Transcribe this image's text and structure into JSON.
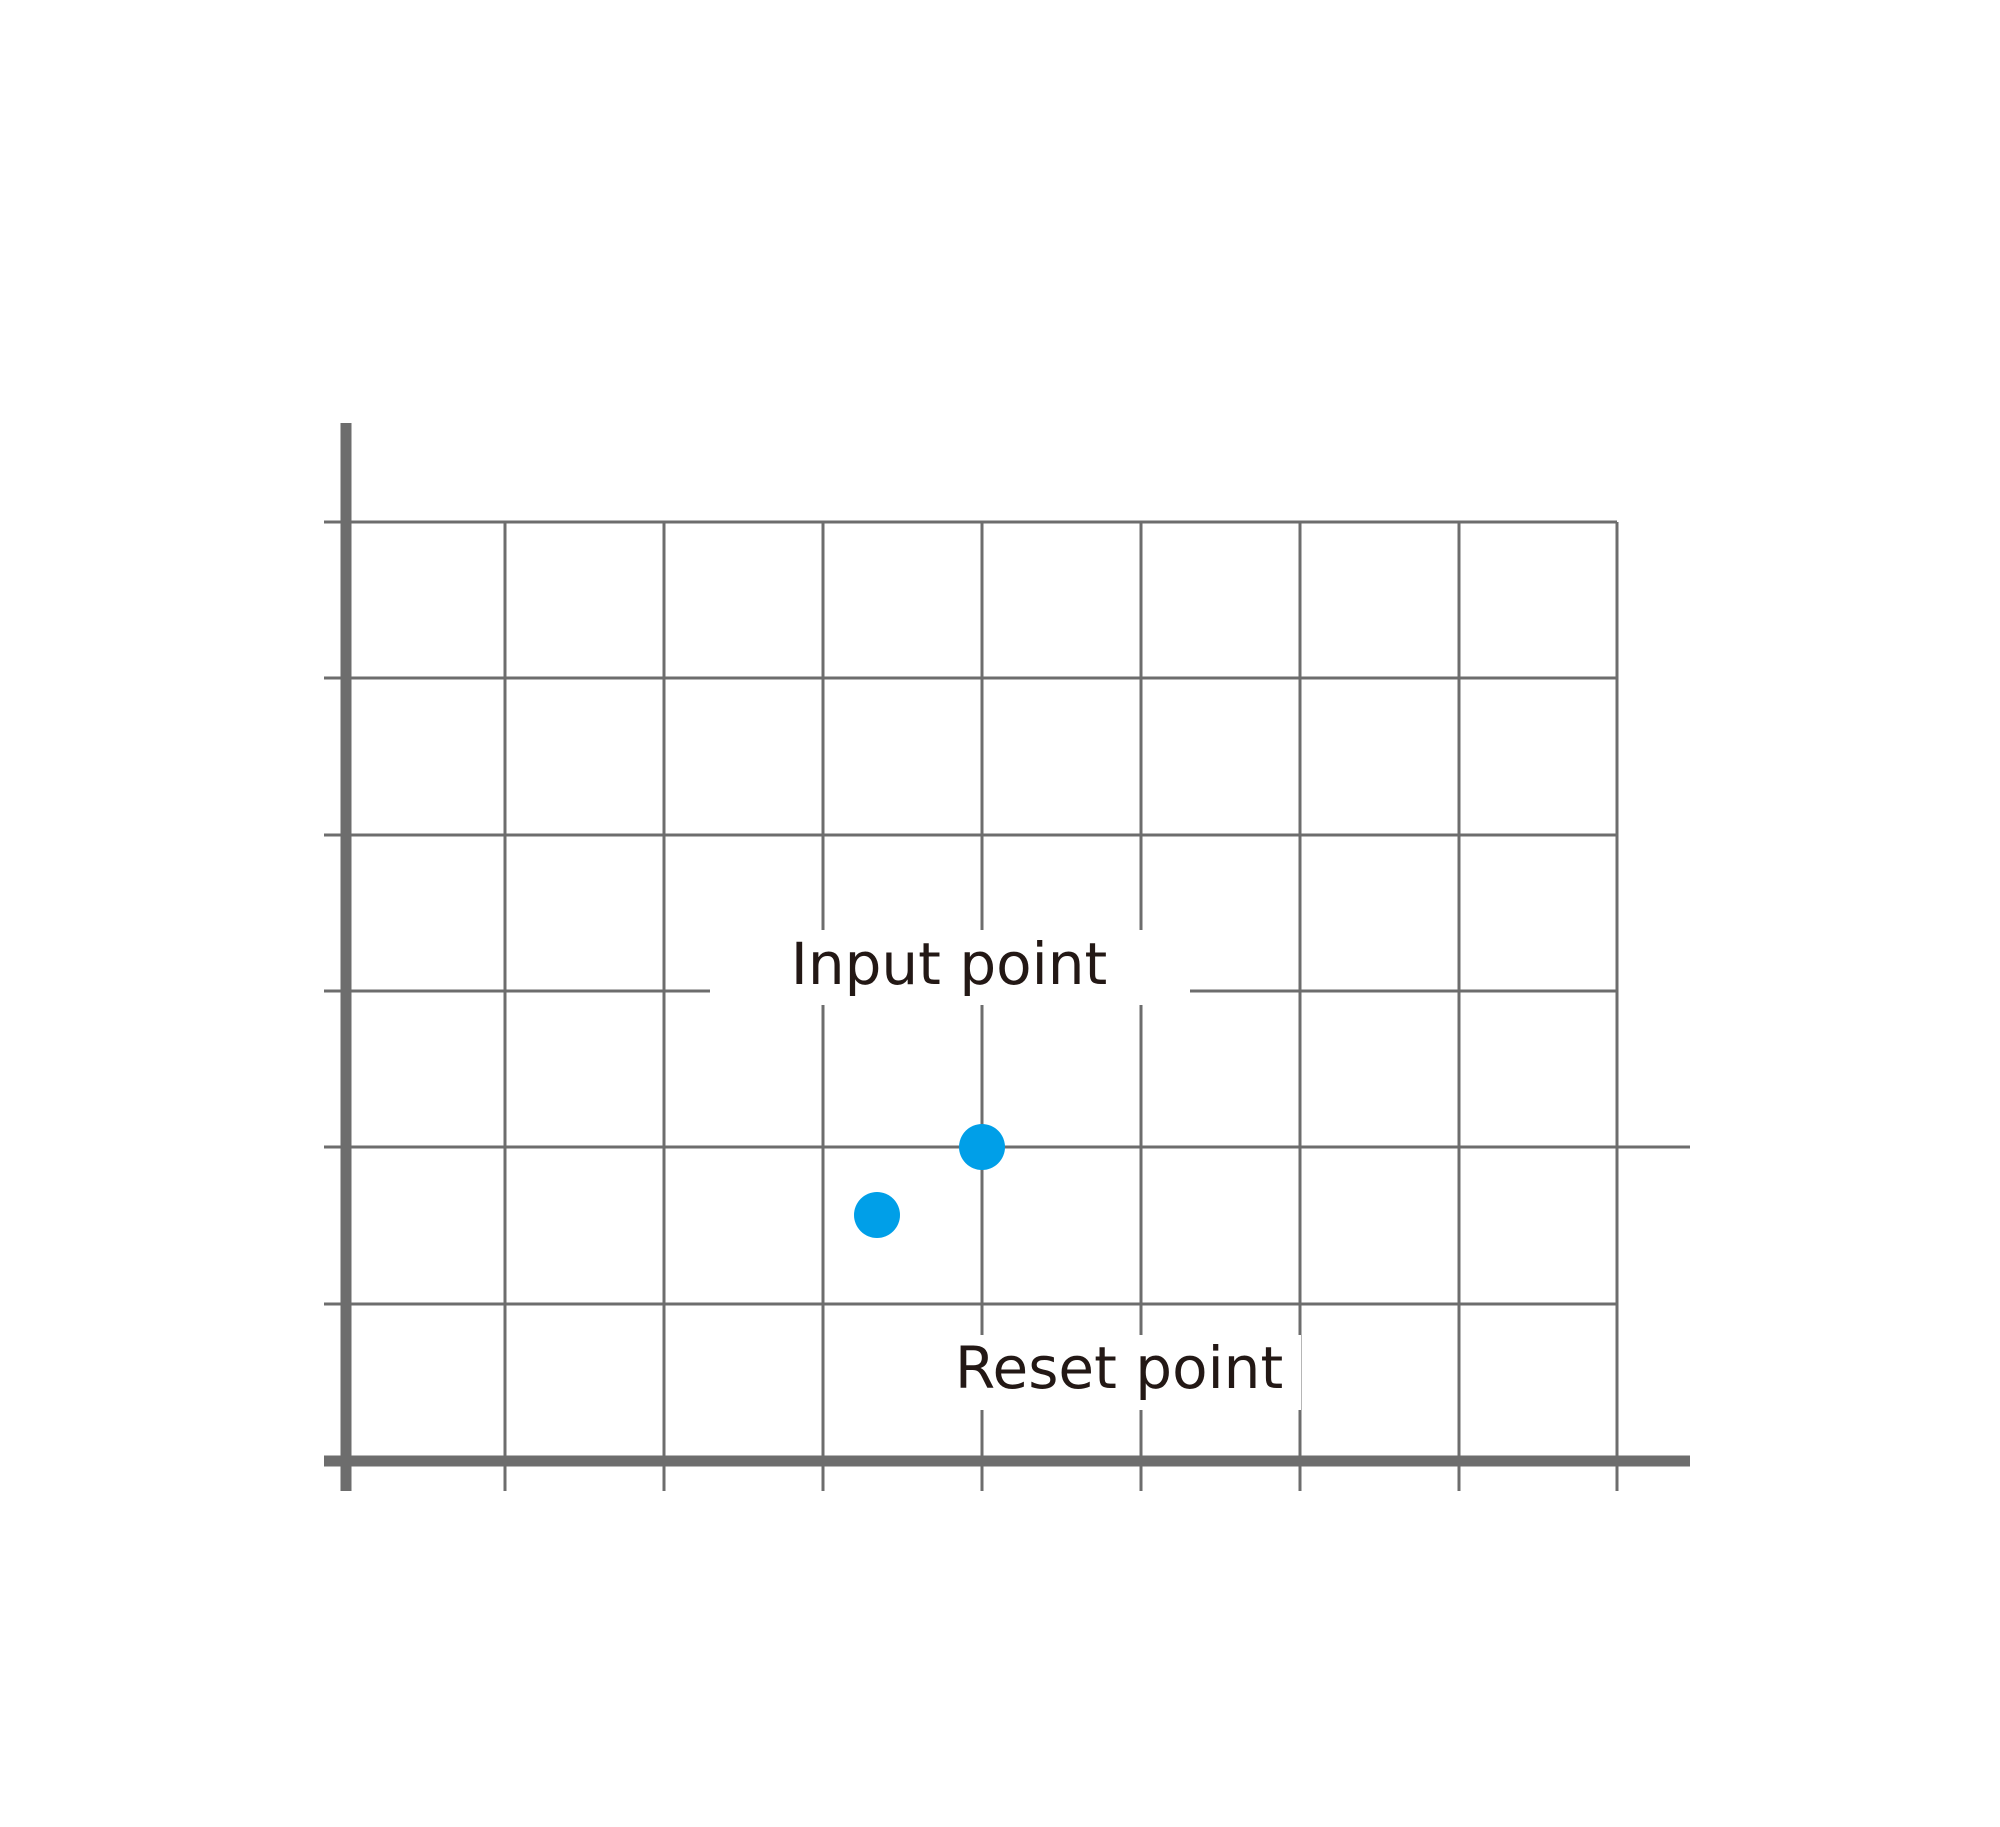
{
  "labels": {
    "input_point": "Input point",
    "reset_point": "Reset point"
  }
}
